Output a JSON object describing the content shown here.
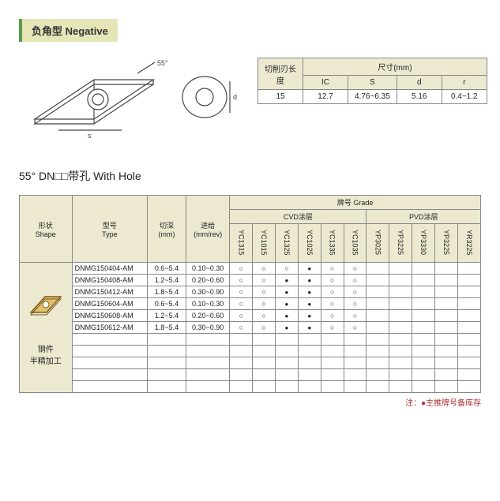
{
  "header": {
    "title": "负角型 Negative"
  },
  "diagram": {
    "angle_label": "55°"
  },
  "dim_table": {
    "row_header": "切削刃长度",
    "group_header": "尺寸(mm)",
    "columns": [
      "IC",
      "S",
      "d",
      "r"
    ],
    "row": {
      "len": "15",
      "IC": "12.7",
      "S": "4.76~6.35",
      "d": "5.16",
      "r": "0.4~1.2"
    }
  },
  "section": {
    "title": "55° DN□□带孔 With Hole"
  },
  "main_table": {
    "shape_header": "形状\nShape",
    "type_header": "型号\nType",
    "depth_header": "切深\n(mm)",
    "feed_header": "进给\n(mm/rev)",
    "grade_header": "牌号 Grade",
    "cvd_header": "CVD涂层",
    "pvd_header": "PVD涂层",
    "grades": [
      "YC1315",
      "YC1015",
      "YC1325",
      "YC1025",
      "YC1335",
      "YC1035",
      "YP3025",
      "YP3225",
      "YP3330",
      "YP3225",
      "YR3225"
    ],
    "shape_label": "钢件\n半精加工",
    "rows": [
      {
        "type": "DNMG150404-AM",
        "depth": "0.6~5.4",
        "feed": "0.10~0.30",
        "marks": [
          "o",
          "o",
          "o",
          "f",
          "o",
          "o",
          "",
          "",
          "",
          "",
          ""
        ]
      },
      {
        "type": "DNMG150408-AM",
        "depth": "1.2~5.4",
        "feed": "0.20~0.60",
        "marks": [
          "o",
          "o",
          "f",
          "f",
          "o",
          "o",
          "",
          "",
          "",
          "",
          ""
        ]
      },
      {
        "type": "DNMG150412-AM",
        "depth": "1.8~5.4",
        "feed": "0.30~0.90",
        "marks": [
          "o",
          "o",
          "f",
          "f",
          "o",
          "o",
          "",
          "",
          "",
          "",
          ""
        ]
      },
      {
        "type": "DNMG150604-AM",
        "depth": "0.6~5.4",
        "feed": "0.10~0.30",
        "marks": [
          "o",
          "o",
          "f",
          "f",
          "o",
          "o",
          "",
          "",
          "",
          "",
          ""
        ]
      },
      {
        "type": "DNMG150608-AM",
        "depth": "1.2~5.4",
        "feed": "0.20~0.60",
        "marks": [
          "o",
          "o",
          "f",
          "f",
          "o",
          "o",
          "",
          "",
          "",
          "",
          ""
        ]
      },
      {
        "type": "DNMG150612-AM",
        "depth": "1.8~5.4",
        "feed": "0.30~0.90",
        "marks": [
          "o",
          "o",
          "f",
          "f",
          "o",
          "o",
          "",
          "",
          "",
          "",
          ""
        ]
      }
    ],
    "blank_rows": 5
  },
  "note": "注：●主推牌号备库存",
  "colors": {
    "badge_bg": "#e5e5b8",
    "badge_border": "#5a9b4a",
    "header_bg": "#ece9d0",
    "border": "#888",
    "note_color": "#b03030",
    "insert_fill": "#e0c068",
    "insert_stroke": "#7a5a20"
  }
}
